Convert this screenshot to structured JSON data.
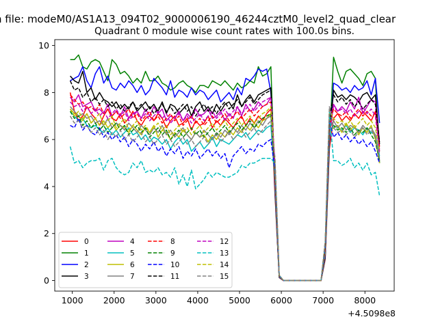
{
  "figure": {
    "suptitle": "n file: modeM0/AS1A13_094T02_9000006190_46244cztM0_level2_quad_clear",
    "title": "Quadrant 0 module wise count rates with 100.0s bins.",
    "offset_text": "+4.5098e8"
  },
  "chart_data": {
    "type": "line",
    "title": "Quadrant 0 module wise count rates with 100.0s bins.",
    "xlabel": "",
    "ylabel": "",
    "xlim": [
      580,
      8700
    ],
    "ylim": [
      -0.45,
      10.25
    ],
    "x_offset": "+4.5098e8",
    "xticks": [
      1000,
      2000,
      3000,
      4000,
      5000,
      6000,
      7000,
      8000
    ],
    "xtick_labels": [
      "1000",
      "2000",
      "3000",
      "4000",
      "5000",
      "6000",
      "7000",
      "8000"
    ],
    "yticks": [
      0,
      2,
      4,
      6,
      8,
      10
    ],
    "ytick_labels": [
      "0",
      "2",
      "4",
      "6",
      "8",
      "10"
    ],
    "grid": false,
    "legend": {
      "placement": "lower-left",
      "columns": 4
    },
    "x_start": 950,
    "x_step": 100,
    "segments": {
      "first": {
        "count": 49,
        "x0": 950,
        "x1": 5750
      },
      "drop": [
        5850,
        5950
      ],
      "zero": [
        6050,
        6950
      ],
      "rise": [
        7050,
        7150
      ],
      "second": {
        "count": 12,
        "x0": 7250,
        "x1": 8350
      },
      "zero_level": 0.0,
      "trough_level": 0.12
    },
    "series": [
      {
        "name": "0",
        "color": "#ff0000",
        "dash": "solid",
        "first": [
          8.0,
          7.2,
          6.8,
          7.0,
          7.4,
          7.1,
          6.9,
          6.6,
          7.0,
          7.3,
          6.9,
          6.8,
          7.1,
          6.7,
          6.9,
          7.2,
          6.8,
          6.6,
          6.9,
          7.0,
          6.8,
          7.1,
          6.9,
          6.5,
          6.8,
          7.0,
          6.6,
          6.7,
          6.9,
          6.4,
          6.8,
          6.6,
          6.7,
          7.0,
          6.5,
          6.8,
          6.6,
          6.9,
          6.7,
          6.5,
          6.8,
          7.0,
          6.6,
          6.9,
          6.7,
          7.0,
          6.8,
          7.1,
          7.3
        ],
        "second": [
          6.9,
          7.1,
          6.8,
          7.0,
          6.8,
          7.1,
          6.9,
          7.2,
          7.0,
          6.8,
          7.2,
          5.7
        ]
      },
      {
        "name": "1",
        "color": "#008000",
        "dash": "solid",
        "first": [
          9.4,
          9.4,
          9.6,
          9.1,
          9.0,
          9.3,
          9.4,
          9.3,
          8.9,
          8.5,
          9.4,
          9.2,
          8.8,
          8.9,
          8.7,
          8.4,
          8.6,
          8.4,
          8.9,
          8.5,
          8.5,
          8.7,
          8.4,
          8.3,
          8.1,
          8.2,
          8.4,
          8.5,
          8.3,
          8.2,
          8.0,
          8.3,
          8.3,
          8.2,
          8.5,
          8.4,
          8.3,
          8.5,
          8.3,
          8.1,
          8.4,
          8.2,
          8.3,
          8.5,
          8.4,
          9.1,
          8.7,
          8.8,
          9.1
        ],
        "second": [
          9.5,
          8.9,
          8.4,
          8.9,
          9.0,
          8.8,
          8.6,
          8.3,
          8.8,
          8.9,
          8.6,
          5.0
        ]
      },
      {
        "name": "2",
        "color": "#0000ff",
        "dash": "solid",
        "first": [
          8.5,
          8.6,
          8.7,
          9.1,
          8.5,
          8.2,
          8.8,
          9.1,
          8.4,
          8.7,
          8.2,
          8.1,
          8.4,
          8.2,
          8.5,
          8.3,
          8.0,
          8.3,
          7.9,
          8.1,
          8.6,
          8.4,
          8.2,
          7.9,
          8.5,
          7.8,
          8.1,
          8.0,
          7.8,
          8.2,
          7.9,
          8.1,
          8.0,
          7.7,
          7.9,
          8.1,
          7.6,
          7.8,
          8.0,
          7.7,
          8.2,
          7.9,
          8.6,
          8.5,
          8.7,
          9.0,
          8.9,
          9.0,
          8.0
        ],
        "second": [
          8.4,
          8.3,
          8.1,
          8.2,
          8.0,
          8.3,
          8.1,
          8.2,
          8.5,
          7.9,
          8.6,
          6.7
        ]
      },
      {
        "name": "3",
        "color": "#000000",
        "dash": "solid",
        "first": [
          8.7,
          8.5,
          8.4,
          8.9,
          8.0,
          8.2,
          7.7,
          8.0,
          7.7,
          7.6,
          7.4,
          7.6,
          7.3,
          7.5,
          7.3,
          7.6,
          7.2,
          7.4,
          7.6,
          7.3,
          7.5,
          7.2,
          7.6,
          7.1,
          7.5,
          7.4,
          7.1,
          7.3,
          7.5,
          7.0,
          7.4,
          7.6,
          7.2,
          7.4,
          7.1,
          7.5,
          7.2,
          7.5,
          7.6,
          7.3,
          7.9,
          7.4,
          7.7,
          7.9,
          7.6,
          7.9,
          8.0,
          8.1,
          8.2
        ],
        "second": [
          8.1,
          7.8,
          7.9,
          7.7,
          7.9,
          7.8,
          7.6,
          7.9,
          8.0,
          7.7,
          7.9,
          5.8
        ]
      },
      {
        "name": "4",
        "color": "#bf00bf",
        "dash": "solid",
        "first": [
          7.8,
          7.6,
          7.9,
          7.4,
          7.5,
          7.6,
          7.2,
          7.3,
          7.1,
          7.5,
          7.0,
          7.2,
          7.0,
          7.4,
          6.9,
          7.1,
          7.2,
          6.9,
          7.3,
          7.0,
          7.4,
          7.1,
          7.3,
          6.8,
          7.0,
          6.9,
          7.2,
          6.8,
          7.1,
          6.9,
          7.3,
          7.0,
          7.1,
          7.3,
          6.9,
          7.0,
          7.2,
          6.8,
          7.1,
          6.9,
          7.4,
          7.0,
          7.5,
          7.2,
          7.3,
          7.6,
          7.4,
          7.5,
          7.8
        ],
        "second": [
          7.5,
          7.2,
          7.4,
          7.2,
          7.6,
          7.3,
          7.8,
          7.1,
          7.4,
          7.7,
          7.6,
          5.5
        ]
      },
      {
        "name": "5",
        "color": "#00bfbf",
        "dash": "solid",
        "first": [
          7.2,
          7.0,
          6.8,
          6.9,
          6.6,
          6.5,
          6.6,
          6.4,
          6.3,
          6.5,
          6.2,
          6.4,
          6.1,
          6.3,
          6.5,
          6.2,
          6.3,
          6.0,
          6.2,
          5.9,
          6.1,
          6.0,
          5.8,
          6.0,
          5.6,
          5.9,
          6.1,
          5.8,
          6.0,
          5.5,
          5.7,
          5.9,
          5.6,
          5.8,
          6.1,
          5.7,
          6.0,
          5.9,
          5.8,
          6.0,
          6.2,
          6.1,
          6.3,
          6.0,
          6.2,
          6.4,
          6.3,
          6.5,
          6.6
        ],
        "second": [
          6.6,
          6.5,
          6.4,
          6.6,
          6.3,
          6.5,
          6.4,
          6.2,
          6.5,
          6.3,
          6.2,
          5.3
        ]
      },
      {
        "name": "6",
        "color": "#bfbf00",
        "dash": "solid",
        "first": [
          7.3,
          7.1,
          7.0,
          6.8,
          7.1,
          6.7,
          6.9,
          6.6,
          6.8,
          6.5,
          6.7,
          6.4,
          6.6,
          6.5,
          6.3,
          6.6,
          6.4,
          6.2,
          6.5,
          6.3,
          6.6,
          6.1,
          6.4,
          6.3,
          6.0,
          6.3,
          6.1,
          6.4,
          6.2,
          6.0,
          6.3,
          6.1,
          6.2,
          5.9,
          6.2,
          6.0,
          6.3,
          6.1,
          6.4,
          6.2,
          6.5,
          6.3,
          6.6,
          6.4,
          6.7,
          6.5,
          6.8,
          6.9,
          7.1
        ],
        "second": [
          6.5,
          6.6,
          6.3,
          6.7,
          6.4,
          6.6,
          6.2,
          6.5,
          6.3,
          6.6,
          6.0,
          5.0
        ]
      },
      {
        "name": "7",
        "color": "#808080",
        "dash": "solid",
        "first": [
          7.4,
          7.2,
          7.0,
          7.1,
          6.9,
          7.0,
          6.7,
          6.8,
          6.6,
          6.9,
          6.5,
          6.7,
          6.6,
          6.4,
          6.7,
          6.5,
          6.3,
          6.6,
          6.4,
          6.2,
          6.5,
          6.3,
          6.6,
          6.2,
          6.4,
          6.1,
          6.3,
          6.5,
          6.2,
          6.0,
          6.3,
          6.1,
          6.4,
          6.2,
          6.0,
          6.3,
          6.1,
          6.4,
          6.2,
          6.5,
          6.3,
          6.6,
          6.4,
          6.7,
          6.5,
          6.8,
          6.6,
          6.9,
          7.0
        ],
        "second": [
          6.8,
          6.5,
          6.7,
          6.4,
          6.6,
          6.5,
          6.3,
          6.6,
          6.4,
          6.5,
          6.2,
          5.1
        ]
      },
      {
        "name": "8",
        "color": "#ff0000",
        "dash": "dashed",
        "first": [
          7.9,
          7.7,
          7.5,
          7.6,
          7.3,
          7.4,
          7.2,
          7.5,
          7.1,
          7.3,
          7.0,
          7.2,
          6.9,
          7.1,
          7.3,
          6.9,
          7.1,
          6.8,
          7.0,
          7.2,
          6.8,
          7.0,
          6.7,
          6.9,
          7.1,
          6.8,
          7.0,
          6.6,
          6.8,
          7.0,
          6.7,
          6.9,
          6.6,
          6.8,
          7.0,
          6.7,
          6.9,
          7.1,
          6.8,
          7.0,
          7.2,
          6.9,
          7.1,
          7.3,
          7.0,
          7.2,
          7.4,
          7.5,
          7.6
        ],
        "second": [
          7.3,
          7.1,
          7.0,
          7.2,
          6.9,
          7.1,
          7.3,
          7.0,
          7.2,
          7.0,
          7.1,
          5.6
        ]
      },
      {
        "name": "9",
        "color": "#008000",
        "dash": "dashed",
        "first": [
          7.2,
          6.9,
          7.0,
          6.6,
          6.8,
          6.5,
          6.7,
          6.4,
          6.6,
          6.3,
          6.5,
          6.7,
          6.4,
          6.6,
          6.2,
          6.4,
          6.6,
          6.3,
          6.5,
          6.1,
          6.3,
          6.5,
          6.2,
          6.4,
          6.0,
          6.2,
          6.4,
          6.1,
          6.3,
          6.5,
          6.2,
          6.4,
          6.1,
          6.3,
          6.5,
          6.2,
          6.4,
          6.6,
          6.3,
          6.5,
          6.7,
          6.4,
          6.6,
          6.8,
          6.5,
          6.7,
          6.9,
          7.0,
          7.1
        ],
        "second": [
          6.6,
          6.4,
          6.5,
          6.3,
          6.5,
          6.2,
          6.4,
          6.3,
          6.5,
          6.2,
          5.9,
          5.1
        ]
      },
      {
        "name": "10",
        "color": "#0000ff",
        "dash": "dashed",
        "first": [
          6.6,
          6.5,
          6.9,
          6.4,
          6.6,
          6.3,
          6.2,
          6.5,
          6.1,
          6.3,
          6.0,
          6.2,
          5.9,
          6.1,
          5.7,
          6.0,
          5.8,
          5.5,
          5.8,
          5.6,
          5.9,
          5.5,
          5.7,
          5.3,
          5.6,
          5.4,
          5.7,
          5.2,
          5.5,
          5.3,
          5.6,
          5.2,
          5.4,
          5.6,
          5.3,
          5.5,
          5.2,
          5.4,
          4.8,
          5.3,
          5.5,
          5.7,
          5.4,
          5.6,
          5.5,
          5.8,
          5.7,
          5.9,
          6.0
        ],
        "second": [
          6.1,
          6.3,
          6.0,
          6.2,
          5.9,
          6.1,
          5.8,
          6.0,
          5.7,
          5.9,
          5.5,
          5.0
        ]
      },
      {
        "name": "11",
        "color": "#000000",
        "dash": "dashed",
        "first": [
          8.5,
          8.1,
          8.2,
          7.8,
          8.0,
          7.6,
          7.8,
          7.5,
          7.7,
          7.4,
          7.6,
          7.3,
          7.5,
          7.2,
          7.4,
          7.6,
          7.3,
          7.5,
          7.2,
          7.4,
          7.1,
          7.3,
          7.5,
          7.2,
          7.4,
          7.1,
          7.3,
          7.5,
          7.2,
          7.4,
          7.0,
          7.3,
          7.5,
          7.2,
          7.4,
          7.1,
          7.4,
          7.6,
          7.3,
          7.5,
          7.7,
          7.4,
          7.6,
          7.8,
          7.5,
          7.7,
          7.9,
          8.0,
          8.1
        ],
        "second": [
          7.9,
          7.6,
          7.8,
          7.5,
          7.7,
          7.4,
          7.6,
          7.3,
          7.5,
          7.7,
          7.5,
          5.9
        ]
      },
      {
        "name": "12",
        "color": "#bf00bf",
        "dash": "dashed",
        "first": [
          7.6,
          7.4,
          7.5,
          7.2,
          7.4,
          7.1,
          7.3,
          7.0,
          7.2,
          6.9,
          7.1,
          7.3,
          7.0,
          7.2,
          6.8,
          7.0,
          7.2,
          6.9,
          7.1,
          6.8,
          7.0,
          7.2,
          6.9,
          7.1,
          6.7,
          6.9,
          7.1,
          6.8,
          7.0,
          6.7,
          6.9,
          7.1,
          6.8,
          7.0,
          7.2,
          6.9,
          7.1,
          7.3,
          7.0,
          7.2,
          7.4,
          7.1,
          7.3,
          7.5,
          7.2,
          7.4,
          7.6,
          7.7,
          7.8
        ],
        "second": [
          7.4,
          7.2,
          7.3,
          7.1,
          7.3,
          7.0,
          7.2,
          7.4,
          7.1,
          7.3,
          7.0,
          5.4
        ]
      },
      {
        "name": "13",
        "color": "#00bfbf",
        "dash": "dashed",
        "first": [
          5.7,
          5.0,
          5.1,
          4.8,
          5.0,
          5.1,
          5.1,
          5.2,
          4.7,
          5.1,
          5.2,
          4.8,
          4.6,
          4.5,
          4.6,
          5.0,
          4.8,
          5.1,
          4.6,
          4.7,
          4.6,
          4.8,
          4.5,
          4.6,
          4.4,
          4.8,
          4.1,
          4.5,
          4.0,
          4.7,
          3.9,
          4.1,
          4.3,
          4.6,
          4.4,
          4.6,
          4.5,
          4.4,
          4.4,
          4.5,
          4.6,
          4.9,
          4.8,
          5.0,
          5.0,
          5.1,
          5.2,
          5.2,
          5.2
        ],
        "second": [
          5.1,
          5.1,
          4.9,
          5.0,
          5.2,
          4.8,
          5.0,
          4.7,
          5.0,
          4.5,
          4.6,
          3.6
        ]
      },
      {
        "name": "14",
        "color": "#bfbf00",
        "dash": "dashed",
        "first": [
          7.3,
          7.0,
          7.2,
          6.9,
          7.1,
          6.7,
          6.9,
          7.1,
          6.6,
          6.8,
          7.0,
          6.5,
          6.7,
          6.9,
          6.4,
          6.6,
          6.8,
          6.4,
          6.6,
          6.3,
          6.5,
          6.7,
          6.4,
          6.6,
          6.2,
          6.4,
          6.6,
          6.3,
          6.5,
          6.2,
          6.4,
          6.6,
          6.3,
          6.5,
          6.7,
          6.4,
          6.6,
          6.8,
          6.5,
          6.7,
          6.9,
          6.6,
          6.8,
          7.0,
          6.7,
          6.9,
          7.1,
          7.2,
          7.4
        ],
        "second": [
          6.9,
          6.7,
          6.8,
          6.6,
          6.8,
          6.5,
          6.7,
          6.9,
          6.6,
          6.8,
          6.5,
          5.5
        ]
      },
      {
        "name": "15",
        "color": "#808080",
        "dash": "dashed",
        "first": [
          7.0,
          6.7,
          6.8,
          6.5,
          6.6,
          6.3,
          6.5,
          6.2,
          6.4,
          6.0,
          6.3,
          6.1,
          6.4,
          6.0,
          6.2,
          5.9,
          6.1,
          6.3,
          5.9,
          6.1,
          5.8,
          6.0,
          6.2,
          5.8,
          6.0,
          5.7,
          5.9,
          6.1,
          5.8,
          6.0,
          5.7,
          5.9,
          6.1,
          5.8,
          6.0,
          6.2,
          5.9,
          6.1,
          6.3,
          6.0,
          6.2,
          6.4,
          6.1,
          6.3,
          6.5,
          6.2,
          6.4,
          6.6,
          6.8
        ],
        "second": [
          6.5,
          6.3,
          6.4,
          6.2,
          6.4,
          6.1,
          6.3,
          6.5,
          6.2,
          6.4,
          6.1,
          5.2
        ]
      }
    ]
  }
}
